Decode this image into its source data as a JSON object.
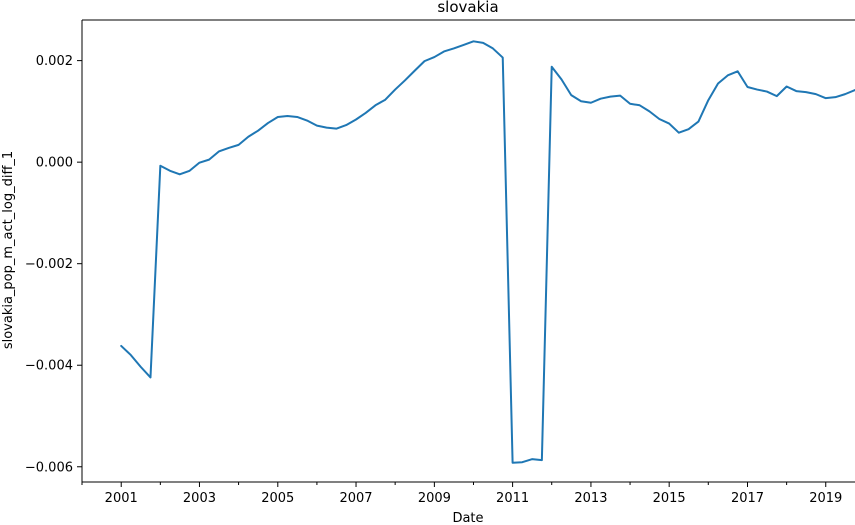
{
  "chart_data": {
    "type": "line",
    "title": "slovakia",
    "xlabel": "Date",
    "ylabel": "slovakia_pop_m_act_log_diff_1",
    "xlim": [
      "2000-01-01",
      "2019-10-01"
    ],
    "ylim": [
      -0.0063,
      0.0028
    ],
    "xticks": [
      "2001",
      "2003",
      "2005",
      "2007",
      "2009",
      "2011",
      "2013",
      "2015",
      "2017",
      "2019"
    ],
    "yticks": [
      {
        "value": 0.002,
        "label": "0.002"
      },
      {
        "value": 0.0,
        "label": "0.000"
      },
      {
        "value": -0.002,
        "label": "−0.002"
      },
      {
        "value": -0.004,
        "label": "−0.004"
      },
      {
        "value": -0.006,
        "label": "−0.006"
      }
    ],
    "grid": false,
    "line_color": "#1f77b4",
    "series": [
      {
        "x": [
          "2001-01-01",
          "2001-04-01",
          "2001-07-01",
          "2001-10-01",
          "2002-01-01",
          "2002-04-01",
          "2002-07-01",
          "2002-10-01",
          "2003-01-01",
          "2003-04-01",
          "2003-07-01",
          "2003-10-01",
          "2004-01-01",
          "2004-04-01",
          "2004-07-01",
          "2004-10-01",
          "2005-01-01",
          "2005-04-01",
          "2005-07-01",
          "2005-10-01",
          "2006-01-01",
          "2006-04-01",
          "2006-07-01",
          "2006-10-01",
          "2007-01-01",
          "2007-04-01",
          "2007-07-01",
          "2007-10-01",
          "2008-01-01",
          "2008-04-01",
          "2008-07-01",
          "2008-10-01",
          "2009-01-01",
          "2009-04-01",
          "2009-07-01",
          "2009-10-01",
          "2010-01-01",
          "2010-04-01",
          "2010-07-01",
          "2010-10-01",
          "2011-01-01",
          "2011-04-01",
          "2011-07-01",
          "2011-10-01",
          "2012-01-01",
          "2012-04-01",
          "2012-07-01",
          "2012-10-01",
          "2013-01-01",
          "2013-04-01",
          "2013-07-01",
          "2013-10-01",
          "2014-01-01",
          "2014-04-01",
          "2014-07-01",
          "2014-10-01",
          "2015-01-01",
          "2015-04-01",
          "2015-07-01",
          "2015-10-01",
          "2016-01-01",
          "2016-04-01",
          "2016-07-01",
          "2016-10-01",
          "2017-01-01",
          "2017-04-01",
          "2017-07-01",
          "2017-10-01",
          "2018-01-01",
          "2018-04-01",
          "2018-07-01",
          "2018-10-01",
          "2019-01-01",
          "2019-04-01",
          "2019-07-01",
          "2019-10-01"
        ],
        "y": [
          -0.00362,
          -0.0038,
          -0.00403,
          -0.00424,
          -7e-05,
          -0.00017,
          -0.00024,
          -0.00017,
          -1e-05,
          5e-05,
          0.00021,
          0.00028,
          0.00034,
          0.0005,
          0.00062,
          0.00077,
          0.00089,
          0.00091,
          0.00089,
          0.00082,
          0.00072,
          0.00068,
          0.00066,
          0.00073,
          0.00084,
          0.00097,
          0.00112,
          0.00123,
          0.00143,
          0.00161,
          0.0018,
          0.00199,
          0.00207,
          0.00218,
          0.00224,
          0.00231,
          0.00238,
          0.00235,
          0.00224,
          0.00206,
          -0.00592,
          -0.00591,
          -0.00585,
          -0.00587,
          0.00188,
          0.00163,
          0.00132,
          0.0012,
          0.00117,
          0.00125,
          0.00129,
          0.00131,
          0.00115,
          0.00112,
          0.001,
          0.00085,
          0.00076,
          0.00058,
          0.00065,
          0.0008,
          0.00122,
          0.00155,
          0.00171,
          0.00179,
          0.00148,
          0.00143,
          0.00139,
          0.0013,
          0.00149,
          0.0014,
          0.00138,
          0.00134,
          0.00126,
          0.00128,
          0.00134,
          0.00142
        ]
      }
    ]
  }
}
